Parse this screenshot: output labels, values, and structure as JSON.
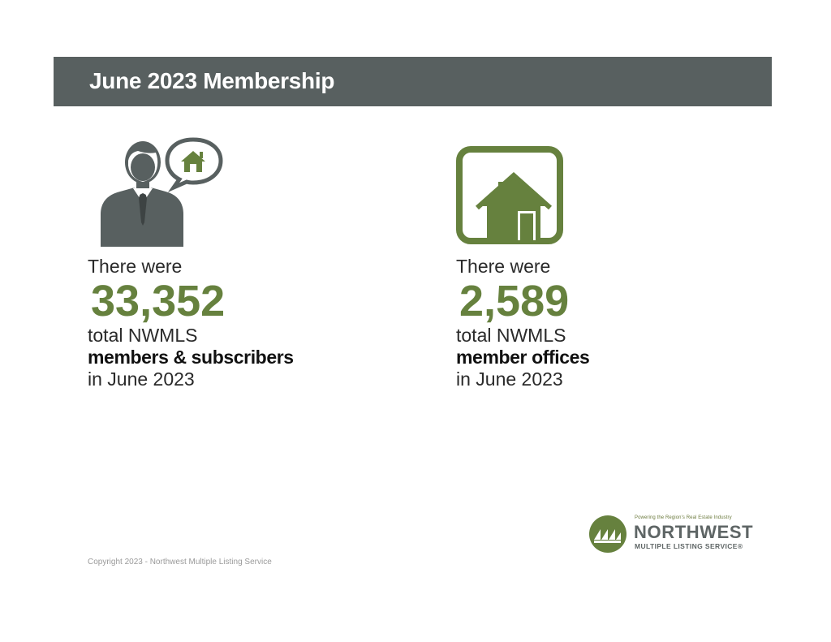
{
  "header": {
    "title": "June 2023 Membership"
  },
  "members": {
    "icon": "person-with-house-speech-bubble-icon",
    "intro": "There were",
    "value": "33,352",
    "line1": "total NWMLS",
    "line2": "members & subscribers",
    "line3": "in June 2023"
  },
  "offices": {
    "icon": "house-in-square-icon",
    "intro": "There were",
    "value": "2,589",
    "line1": "total NWMLS",
    "line2": "member offices",
    "line3": "in June 2023"
  },
  "footer": {
    "copyright": "Copyright 2023 - Northwest Multiple Listing Service"
  },
  "logo": {
    "icon": "nwmls-logo-icon",
    "tagline": "Powering the Region's Real Estate Industry",
    "name": "NORTHWEST",
    "subtitle": "MULTIPLE LISTING SERVICE®"
  },
  "colors": {
    "header_bg": "#586060",
    "accent_green": "#66813E",
    "icon_gray": "#586060"
  }
}
